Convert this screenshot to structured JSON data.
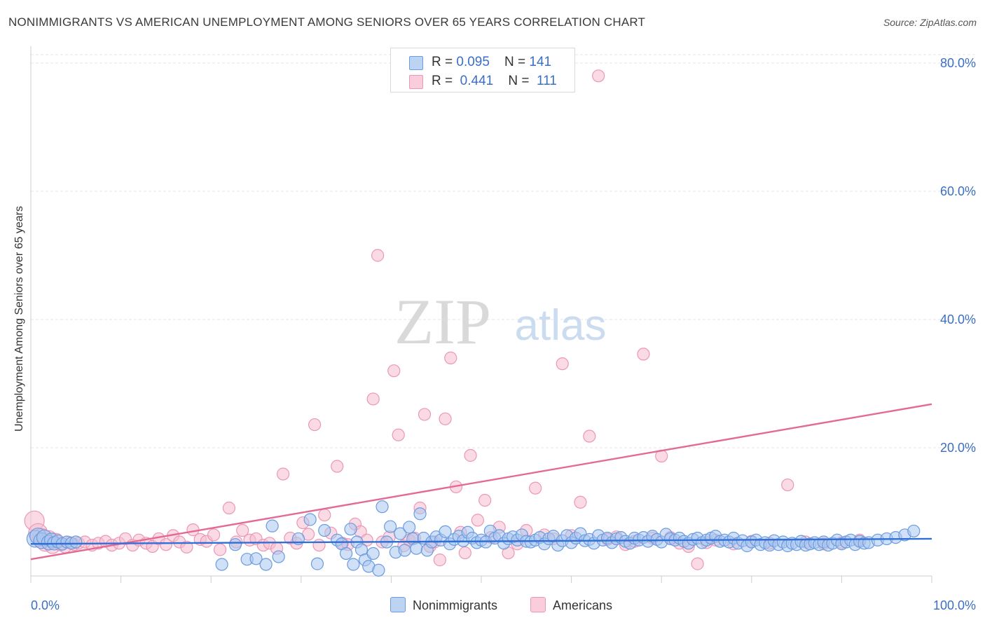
{
  "header": {
    "title": "NONIMMIGRANTS VS AMERICAN UNEMPLOYMENT AMONG SENIORS OVER 65 YEARS CORRELATION CHART",
    "source": "Source: ZipAtlas.com"
  },
  "watermark": {
    "zip": "ZIP",
    "atlas": "atlas"
  },
  "colors": {
    "blue_fill": "#a9c6ee",
    "blue_stroke": "#6b9be0",
    "blue_line": "#2f6fd6",
    "pink_fill": "#f6bdd0",
    "pink_stroke": "#ec97b3",
    "pink_line": "#e46a96",
    "tick_text": "#3b6fc4"
  },
  "legend": {
    "rows": [
      {
        "r_label": "R = ",
        "r_value": "0.095",
        "n_label": "N = ",
        "n_value": "141"
      },
      {
        "r_label": "R = ",
        "r_value": "0.441",
        "n_label": "N = ",
        "n_value": "111"
      }
    ]
  },
  "bottom_legend": {
    "series_a": "Nonimmigrants",
    "series_b": "Americans"
  },
  "chart_data": {
    "type": "scatter",
    "xlabel": "",
    "ylabel": "Unemployment Among Seniors over 65 years",
    "xlim": [
      0,
      100
    ],
    "ylim": [
      0,
      80
    ],
    "x_tick_labels": {
      "min": "0.0%",
      "max": "100.0%"
    },
    "y_ticks": [
      {
        "value": 20,
        "label": "20.0%"
      },
      {
        "value": 40,
        "label": "40.0%"
      },
      {
        "value": 60,
        "label": "60.0%"
      },
      {
        "value": 80,
        "label": "80.0%"
      }
    ],
    "grid": true,
    "series": [
      {
        "name": "Nonimmigrants",
        "r": 0.095,
        "n": 141,
        "trend": {
          "x0": 0,
          "y0": 5.0,
          "x1": 100,
          "y1": 5.8
        },
        "points": [
          [
            0.5,
            5.8
          ],
          [
            0.8,
            6.2
          ],
          [
            1.2,
            5.5
          ],
          [
            1.5,
            6.0
          ],
          [
            2.0,
            5.2
          ],
          [
            2.3,
            5.6
          ],
          [
            2.6,
            5.1
          ],
          [
            3.0,
            5.4
          ],
          [
            3.5,
            5.0
          ],
          [
            4.0,
            5.3
          ],
          [
            4.5,
            5.1
          ],
          [
            5.0,
            5.3
          ],
          [
            21.2,
            1.8
          ],
          [
            22.7,
            4.9
          ],
          [
            24.0,
            2.6
          ],
          [
            25.0,
            2.7
          ],
          [
            26.1,
            1.8
          ],
          [
            26.8,
            7.8
          ],
          [
            27.5,
            3.0
          ],
          [
            29.7,
            5.8
          ],
          [
            31.0,
            8.8
          ],
          [
            31.8,
            1.9
          ],
          [
            32.6,
            7.1
          ],
          [
            34.0,
            5.6
          ],
          [
            34.5,
            5.0
          ],
          [
            35.0,
            3.5
          ],
          [
            35.5,
            7.3
          ],
          [
            35.8,
            1.8
          ],
          [
            36.2,
            5.3
          ],
          [
            36.7,
            4.1
          ],
          [
            37.1,
            2.5
          ],
          [
            37.5,
            1.5
          ],
          [
            38.0,
            3.5
          ],
          [
            38.6,
            0.9
          ],
          [
            39.0,
            10.8
          ],
          [
            39.5,
            5.3
          ],
          [
            39.9,
            7.7
          ],
          [
            40.5,
            3.7
          ],
          [
            41.0,
            6.6
          ],
          [
            41.5,
            4.0
          ],
          [
            42.0,
            7.6
          ],
          [
            42.4,
            5.8
          ],
          [
            42.8,
            4.3
          ],
          [
            43.2,
            9.7
          ],
          [
            43.6,
            5.9
          ],
          [
            44.0,
            4.0
          ],
          [
            44.5,
            5.3
          ],
          [
            45.0,
            6.1
          ],
          [
            45.5,
            5.6
          ],
          [
            46.0,
            6.9
          ],
          [
            46.5,
            5.0
          ],
          [
            47.0,
            5.7
          ],
          [
            47.5,
            6.2
          ],
          [
            48.0,
            5.5
          ],
          [
            48.5,
            6.8
          ],
          [
            49.0,
            5.9
          ],
          [
            49.5,
            5.2
          ],
          [
            50.0,
            5.6
          ],
          [
            50.5,
            5.3
          ],
          [
            51.0,
            7.0
          ],
          [
            51.5,
            5.9
          ],
          [
            52.0,
            6.3
          ],
          [
            52.5,
            5.1
          ],
          [
            53.0,
            5.8
          ],
          [
            53.5,
            6.1
          ],
          [
            54.0,
            5.6
          ],
          [
            54.5,
            6.4
          ],
          [
            55.0,
            5.4
          ],
          [
            55.5,
            5.3
          ],
          [
            56.0,
            5.6
          ],
          [
            56.5,
            6.0
          ],
          [
            57.0,
            5.0
          ],
          [
            57.5,
            5.8
          ],
          [
            58.0,
            6.2
          ],
          [
            58.5,
            4.8
          ],
          [
            59.0,
            5.5
          ],
          [
            59.5,
            6.3
          ],
          [
            60.0,
            5.2
          ],
          [
            60.5,
            5.9
          ],
          [
            61.0,
            6.6
          ],
          [
            61.5,
            5.5
          ],
          [
            62.0,
            5.7
          ],
          [
            62.5,
            5.1
          ],
          [
            63.0,
            6.3
          ],
          [
            63.5,
            5.6
          ],
          [
            64.0,
            5.9
          ],
          [
            64.5,
            5.2
          ],
          [
            65.0,
            5.8
          ],
          [
            65.5,
            6.0
          ],
          [
            66.0,
            5.4
          ],
          [
            66.5,
            5.1
          ],
          [
            67.0,
            5.9
          ],
          [
            67.5,
            5.6
          ],
          [
            68.0,
            6.0
          ],
          [
            68.5,
            5.4
          ],
          [
            69.0,
            6.2
          ],
          [
            69.5,
            5.7
          ],
          [
            70.0,
            5.3
          ],
          [
            70.5,
            6.5
          ],
          [
            71.0,
            5.8
          ],
          [
            71.5,
            5.6
          ],
          [
            72.0,
            5.9
          ],
          [
            72.5,
            5.4
          ],
          [
            73.0,
            5.1
          ],
          [
            73.5,
            5.7
          ],
          [
            74.0,
            5.9
          ],
          [
            74.5,
            5.2
          ],
          [
            75.0,
            5.6
          ],
          [
            75.5,
            5.9
          ],
          [
            76.0,
            6.2
          ],
          [
            76.5,
            5.4
          ],
          [
            77.0,
            5.6
          ],
          [
            77.5,
            5.3
          ],
          [
            78.0,
            5.9
          ],
          [
            78.5,
            5.1
          ],
          [
            79.0,
            5.5
          ],
          [
            79.5,
            4.7
          ],
          [
            80.0,
            5.3
          ],
          [
            80.5,
            5.6
          ],
          [
            81.0,
            4.9
          ],
          [
            81.5,
            5.2
          ],
          [
            82.0,
            4.8
          ],
          [
            82.5,
            5.5
          ],
          [
            83.0,
            4.9
          ],
          [
            83.5,
            5.3
          ],
          [
            84.0,
            4.7
          ],
          [
            84.5,
            5.1
          ],
          [
            85.0,
            4.9
          ],
          [
            85.5,
            5.4
          ],
          [
            86.0,
            4.8
          ],
          [
            86.5,
            5.0
          ],
          [
            87.0,
            5.2
          ],
          [
            87.5,
            4.9
          ],
          [
            88.0,
            5.3
          ],
          [
            88.5,
            4.8
          ],
          [
            89.0,
            5.1
          ],
          [
            89.5,
            5.6
          ],
          [
            90.0,
            5.0
          ],
          [
            90.5,
            5.3
          ],
          [
            91.0,
            5.6
          ],
          [
            91.5,
            4.9
          ],
          [
            92.0,
            5.4
          ],
          [
            92.5,
            5.1
          ],
          [
            93.0,
            5.2
          ],
          [
            94.0,
            5.6
          ],
          [
            95.0,
            5.8
          ],
          [
            96.0,
            6.0
          ],
          [
            97.0,
            6.4
          ],
          [
            98.0,
            7.0
          ]
        ]
      },
      {
        "name": "Americans",
        "r": 0.441,
        "n": 111,
        "trend": {
          "x0": 0,
          "y0": 2.6,
          "x1": 100,
          "y1": 26.8
        },
        "points": [
          [
            0.4,
            8.6
          ],
          [
            0.8,
            6.7
          ],
          [
            1.2,
            6.0
          ],
          [
            1.6,
            5.2
          ],
          [
            2.0,
            5.8
          ],
          [
            2.4,
            4.7
          ],
          [
            2.8,
            5.5
          ],
          [
            3.3,
            5.0
          ],
          [
            3.8,
            4.6
          ],
          [
            4.3,
            5.2
          ],
          [
            4.8,
            4.9
          ],
          [
            5.3,
            5.1
          ],
          [
            6.0,
            5.3
          ],
          [
            6.8,
            4.8
          ],
          [
            7.5,
            5.1
          ],
          [
            8.3,
            5.4
          ],
          [
            9.0,
            4.8
          ],
          [
            9.8,
            5.1
          ],
          [
            10.5,
            5.8
          ],
          [
            11.3,
            4.8
          ],
          [
            12.0,
            5.6
          ],
          [
            12.8,
            5.1
          ],
          [
            13.5,
            4.6
          ],
          [
            14.2,
            5.8
          ],
          [
            15.0,
            4.9
          ],
          [
            15.8,
            6.3
          ],
          [
            16.5,
            5.3
          ],
          [
            17.3,
            4.5
          ],
          [
            18.0,
            7.2
          ],
          [
            18.8,
            5.7
          ],
          [
            19.5,
            5.4
          ],
          [
            20.3,
            6.4
          ],
          [
            21.0,
            4.1
          ],
          [
            22.0,
            10.6
          ],
          [
            22.8,
            5.3
          ],
          [
            23.5,
            7.1
          ],
          [
            24.3,
            5.6
          ],
          [
            25.0,
            5.8
          ],
          [
            25.8,
            4.8
          ],
          [
            26.5,
            5.1
          ],
          [
            27.3,
            4.3
          ],
          [
            28.0,
            15.9
          ],
          [
            28.8,
            5.9
          ],
          [
            29.5,
            5.1
          ],
          [
            30.2,
            8.3
          ],
          [
            30.8,
            6.5
          ],
          [
            31.5,
            23.6
          ],
          [
            32.0,
            4.8
          ],
          [
            32.6,
            9.5
          ],
          [
            33.3,
            6.7
          ],
          [
            34.0,
            17.1
          ],
          [
            34.6,
            5.1
          ],
          [
            35.2,
            4.9
          ],
          [
            36.0,
            8.1
          ],
          [
            36.6,
            6.9
          ],
          [
            37.3,
            5.6
          ],
          [
            38.0,
            27.6
          ],
          [
            38.5,
            50.0
          ],
          [
            39.0,
            5.3
          ],
          [
            39.8,
            6.1
          ],
          [
            40.3,
            32.0
          ],
          [
            40.8,
            22.0
          ],
          [
            41.4,
            4.7
          ],
          [
            42.0,
            5.6
          ],
          [
            42.6,
            5.9
          ],
          [
            43.2,
            10.6
          ],
          [
            43.7,
            25.2
          ],
          [
            44.3,
            4.6
          ],
          [
            44.8,
            5.3
          ],
          [
            45.4,
            2.5
          ],
          [
            46.0,
            24.5
          ],
          [
            46.6,
            34.0
          ],
          [
            47.2,
            13.9
          ],
          [
            47.7,
            6.8
          ],
          [
            48.2,
            3.6
          ],
          [
            48.8,
            18.8
          ],
          [
            49.6,
            8.7
          ],
          [
            50.4,
            11.8
          ],
          [
            51.1,
            6.0
          ],
          [
            52.0,
            7.6
          ],
          [
            53.0,
            3.6
          ],
          [
            54.0,
            5.0
          ],
          [
            55.0,
            7.1
          ],
          [
            56.0,
            13.7
          ],
          [
            57.0,
            6.4
          ],
          [
            58.0,
            5.8
          ],
          [
            59.0,
            33.1
          ],
          [
            60.0,
            6.3
          ],
          [
            61.0,
            11.5
          ],
          [
            62.0,
            21.8
          ],
          [
            63.0,
            78.0
          ],
          [
            64.0,
            5.7
          ],
          [
            65.0,
            6.1
          ],
          [
            66.0,
            4.9
          ],
          [
            67.0,
            5.4
          ],
          [
            68.0,
            34.6
          ],
          [
            69.0,
            5.9
          ],
          [
            70.0,
            18.7
          ],
          [
            71.0,
            6.0
          ],
          [
            72.0,
            5.1
          ],
          [
            73.0,
            4.6
          ],
          [
            74.0,
            1.9
          ],
          [
            75.0,
            5.2
          ],
          [
            76.0,
            5.6
          ],
          [
            78.0,
            5.0
          ],
          [
            80.0,
            5.4
          ],
          [
            82.0,
            5.1
          ],
          [
            84.0,
            14.2
          ],
          [
            86.0,
            5.3
          ],
          [
            88.0,
            5.0
          ],
          [
            90.0,
            5.2
          ],
          [
            92.0,
            5.6
          ]
        ]
      }
    ]
  }
}
